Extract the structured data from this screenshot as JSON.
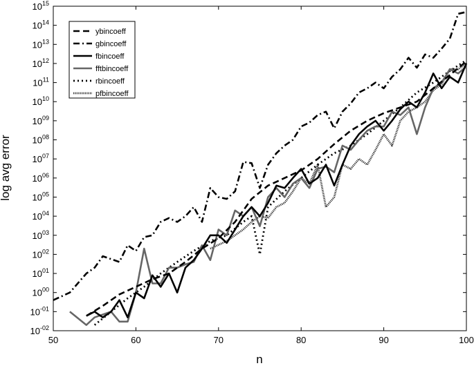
{
  "chart_data": {
    "type": "line",
    "title": "",
    "xlabel": "n",
    "ylabel": "log avg error",
    "xlim": [
      50,
      100
    ],
    "ylim_exponent": [
      -2,
      15
    ],
    "y_scale": "log",
    "grid": false,
    "legend_position": "top-left",
    "x_ticks": [
      "50",
      "60",
      "70",
      "80",
      "90",
      "100"
    ],
    "y_tick_base": "10",
    "y_tick_exponents": [
      "-02",
      "-01",
      "00",
      "01",
      "02",
      "03",
      "04",
      "05",
      "06",
      "07",
      "08",
      "09",
      "10",
      "11",
      "12",
      "13",
      "14",
      "15"
    ],
    "series": [
      {
        "name": "ybincoeff",
        "style": "dashed",
        "color": "#000000",
        "x": [
          54,
          56,
          58,
          60,
          62,
          64,
          66,
          68,
          70,
          72,
          74,
          76,
          78,
          80,
          82,
          84,
          86,
          88,
          90,
          92,
          94,
          96,
          98,
          100
        ],
        "y": [
          0.06,
          0.2,
          0.8,
          2,
          5,
          10,
          40,
          200,
          700,
          5000.0,
          80000.0,
          400000.0,
          1000000.0,
          2500000.0,
          10000000.0,
          60000000.0,
          300000000.0,
          1000000000.0,
          2500000000.0,
          5000000000.0,
          10000000000.0,
          50000000000.0,
          250000000000.0,
          1300000000000.0
        ]
      },
      {
        "name": "gbincoeff",
        "style": "dashdot",
        "color": "#000000",
        "x": [
          50,
          52,
          54,
          55,
          56,
          58,
          59,
          60,
          61,
          62,
          63,
          64,
          65,
          66,
          67,
          68,
          69,
          70,
          71,
          72,
          73,
          74,
          75,
          76,
          77,
          78,
          79,
          80,
          81,
          82,
          83,
          84,
          85,
          86,
          87,
          88,
          89,
          90,
          91,
          92,
          93,
          94,
          95,
          96,
          97,
          98,
          99,
          100
        ],
        "y": [
          0.4,
          1,
          10,
          20,
          80,
          40,
          300,
          150,
          800,
          1000,
          5000,
          8000,
          5000,
          10000.0,
          30000.0,
          5000,
          300000.0,
          100000.0,
          80000.0,
          200000.0,
          7000000.0,
          6000000.0,
          300000.0,
          5000000.0,
          20000000.0,
          50000000.0,
          100000000.0,
          500000000.0,
          800000000.0,
          2000000000.0,
          3000000000.0,
          400000000.0,
          3000000000.0,
          8000000000.0,
          30000000000.0,
          50000000000.0,
          100000000000.0,
          50000000000.0,
          200000000000.0,
          500000000000.0,
          2000000000000.0,
          600000000000.0,
          3000000000000.0,
          2000000000000.0,
          6000000000000.0,
          20000000000000.0,
          400000000000000.0,
          500000000000000.0
        ]
      },
      {
        "name": "fbincoeff",
        "style": "solid",
        "color": "#000000",
        "x": [
          54,
          55,
          56,
          57,
          58,
          59,
          60,
          61,
          62,
          63,
          64,
          65,
          66,
          67,
          68,
          69,
          70,
          71,
          72,
          73,
          74,
          75,
          76,
          77,
          78,
          79,
          80,
          81,
          82,
          83,
          84,
          85,
          86,
          87,
          88,
          89,
          90,
          91,
          92,
          93,
          94,
          95,
          96,
          97,
          98,
          99,
          100
        ],
        "y": [
          0.06,
          0.1,
          0.05,
          0.1,
          0.4,
          0.05,
          1,
          0.5,
          8,
          2,
          10,
          1,
          20,
          50,
          200,
          1000,
          1000,
          400,
          2000.0,
          10000.0,
          30000.0,
          10000.0,
          50000.0,
          400000.0,
          300000.0,
          1000000.0,
          3000000.0,
          500000.0,
          1000000.0,
          5000000.0,
          400000.0,
          5000000.0,
          50000000.0,
          200000000.0,
          500000000.0,
          1000000000.0,
          300000000.0,
          1000000000.0,
          4000000000.0,
          10000000000.0,
          5000000000.0,
          30000000000.0,
          300000000000.0,
          50000000000.0,
          200000000000.0,
          100000000000.0,
          1000000000000.0
        ]
      },
      {
        "name": "fftbincoeff",
        "style": "solid",
        "color": "#666666",
        "x": [
          52,
          54,
          55,
          57,
          58,
          59,
          60,
          61,
          62,
          63,
          64,
          65,
          66,
          67,
          68,
          69,
          70,
          71,
          72,
          73,
          74,
          75,
          76,
          77,
          78,
          79,
          80,
          81,
          82,
          83,
          84,
          85,
          86,
          87,
          88,
          89,
          90,
          91,
          92,
          93,
          94,
          95,
          96,
          97,
          98,
          99,
          100
        ],
        "y": [
          0.1,
          0.02,
          0.05,
          0.1,
          0.03,
          0.03,
          1,
          200,
          3,
          3,
          20,
          20,
          30,
          40,
          300,
          50,
          2000,
          1000,
          20000.0,
          10000.0,
          30000.0,
          3000.0,
          100000.0,
          300000.0,
          100000.0,
          500000.0,
          1000000.0,
          300000.0,
          3000000.0,
          4000000.0,
          2000000.0,
          50000000.0,
          30000000.0,
          100000000.0,
          300000000.0,
          500000000.0,
          500000000.0,
          3000000000.0,
          2000000000.0,
          5000000000.0,
          200000000.0,
          5000000000.0,
          50000000000.0,
          100000000000.0,
          500000000000.0,
          300000000000.0,
          700000000000.0
        ]
      },
      {
        "name": "rbincoeff",
        "style": "dotted",
        "color": "#000000",
        "x": [
          55,
          57,
          59,
          61,
          63,
          65,
          67,
          69,
          71,
          73,
          74,
          75,
          76,
          78,
          80,
          82,
          84,
          86,
          88,
          90,
          92,
          94,
          96,
          98,
          100
        ],
        "y": [
          0.02,
          0.1,
          0.5,
          2,
          10,
          40,
          150,
          500,
          1000,
          5000.0,
          10000.0,
          100,
          30000.0,
          200000.0,
          1000000.0,
          5000000.0,
          20000000.0,
          50000000.0,
          200000000.0,
          1000000000.0,
          5000000000.0,
          30000000000.0,
          100000000000.0,
          400000000000.0,
          1500000000000.0
        ]
      },
      {
        "name": "pfbincoeff",
        "style": "densedot",
        "color": "#333333",
        "x": [
          69,
          71,
          73,
          74,
          75,
          76,
          77,
          78,
          79,
          80,
          81,
          82,
          83,
          84,
          85,
          86,
          87,
          88,
          89,
          90,
          91,
          92,
          93,
          94,
          95,
          96,
          97,
          98,
          99,
          100
        ],
        "y": [
          200,
          500,
          2000.0,
          5000.0,
          10000.0,
          8000.0,
          30000.0,
          50000.0,
          200000.0,
          1000000.0,
          500000.0,
          5000000.0,
          30000.0,
          100000.0,
          5000000.0,
          3000000.0,
          10000000.0,
          5000000.0,
          30000000.0,
          200000000.0,
          50000000.0,
          1000000000.0,
          3000000000.0,
          5000000000.0,
          10000000000.0,
          40000000000.0,
          80000000000.0,
          500000000000.0,
          500000000000.0,
          1000000000000.0
        ]
      }
    ]
  }
}
